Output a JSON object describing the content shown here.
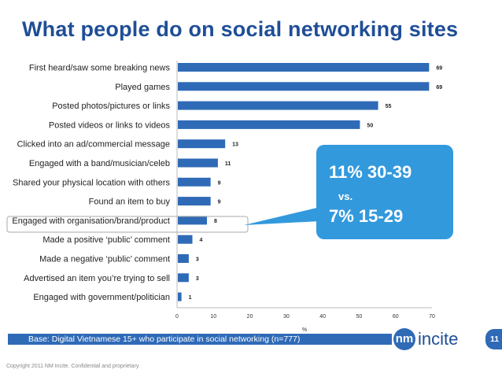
{
  "title": "What people do on social networking sites",
  "chart_data": {
    "type": "bar",
    "orientation": "horizontal",
    "categories": [
      "First heard/saw some breaking news",
      "Played games",
      "Posted photos/pictures or links",
      "Posted videos or links to videos",
      "Clicked into an ad/commercial message",
      "Engaged with a band/musician/celeb",
      "Shared your physical location with others",
      "Found an item to buy",
      "Engaged with organisation/brand/product",
      "Made a positive ‘public’ comment",
      "Made a negative ‘public’ comment",
      "Advertised an item you’re trying to sell",
      "Engaged with government/politician"
    ],
    "values": [
      69,
      69,
      55,
      50,
      13,
      11,
      9,
      9,
      8,
      4,
      3,
      3,
      1
    ],
    "value_labels": [
      "69",
      "69",
      "55",
      "50",
      "13",
      "11",
      "9",
      "9",
      "8",
      "4",
      "3",
      "3",
      "1"
    ],
    "xticks": [
      "0",
      "10",
      "20",
      "30",
      "40",
      "50",
      "60",
      "70"
    ],
    "xlim": [
      0,
      70
    ],
    "xlabel": "%",
    "bar_color": "#2f6ab7",
    "highlighted_category": "Engaged with organisation/brand/product",
    "callout": {
      "line1": "11% 30-39",
      "line2": "vs.",
      "line3": "7% 15-29",
      "color": "#3399dd"
    }
  },
  "footer": {
    "base_note": "Base: Digital Vietnamese 15+ who participate in social networking (n=777)",
    "page_number": "11",
    "logo_mark": "nm",
    "logo_word": "incite",
    "copyright": "Copyright 2011 NM Incite.  Confidential and proprietary."
  }
}
